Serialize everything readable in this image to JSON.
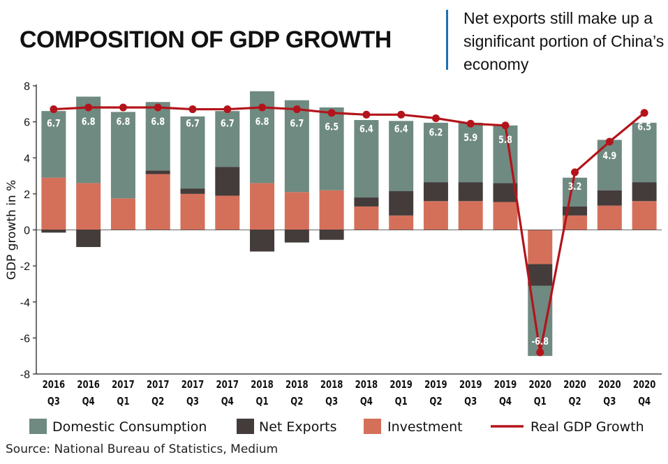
{
  "title": "COMPOSITION OF GDP GROWTH",
  "subtitle": "Net exports still make up a significant portion of China’s economy",
  "source": "Source: National Bureau of Statistics, Medium",
  "colors": {
    "consumption": "#6f8a80",
    "net_exports": "#433c3b",
    "investment": "#d4705a",
    "gdp_line": "#b3141b"
  },
  "chart_data": {
    "type": "bar",
    "subtype": "stacked bar with line overlay",
    "ylabel": "GDP growth in %",
    "ylim": [
      -8,
      8
    ],
    "yticks": [
      8,
      6,
      4,
      2,
      0,
      -2,
      -4,
      -6,
      -8
    ],
    "categories": [
      [
        "2016",
        "Q3"
      ],
      [
        "2016",
        "Q4"
      ],
      [
        "2017",
        "Q1"
      ],
      [
        "2017",
        "Q2"
      ],
      [
        "2017",
        "Q3"
      ],
      [
        "2017",
        "Q4"
      ],
      [
        "2018",
        "Q1"
      ],
      [
        "2018",
        "Q2"
      ],
      [
        "2018",
        "Q3"
      ],
      [
        "2018",
        "Q4"
      ],
      [
        "2019",
        "Q1"
      ],
      [
        "2019",
        "Q2"
      ],
      [
        "2019",
        "Q3"
      ],
      [
        "2019",
        "Q4"
      ],
      [
        "2020",
        "Q1"
      ],
      [
        "2020",
        "Q2"
      ],
      [
        "2020",
        "Q3"
      ],
      [
        "2020",
        "Q4"
      ]
    ],
    "series": [
      {
        "name": "Domestic Consumption",
        "values": [
          3.7,
          4.8,
          4.8,
          3.8,
          4.0,
          3.1,
          5.1,
          5.1,
          4.6,
          4.3,
          3.9,
          3.3,
          3.3,
          3.2,
          -3.9,
          1.6,
          2.8,
          3.3
        ]
      },
      {
        "name": "Net Exports",
        "values": [
          -0.15,
          -0.95,
          0.0,
          0.2,
          0.3,
          1.6,
          -1.2,
          -0.7,
          -0.55,
          0.5,
          1.35,
          1.05,
          1.05,
          1.05,
          -1.2,
          0.5,
          0.85,
          1.05
        ]
      },
      {
        "name": "Investment",
        "values": [
          2.9,
          2.6,
          1.75,
          3.1,
          2.0,
          1.9,
          2.6,
          2.1,
          2.2,
          1.3,
          0.8,
          1.6,
          1.6,
          1.55,
          -1.9,
          0.8,
          1.35,
          1.6
        ]
      }
    ],
    "line": {
      "name": "Real GDP Growth",
      "values": [
        6.7,
        6.8,
        6.8,
        6.8,
        6.7,
        6.7,
        6.8,
        6.7,
        6.5,
        6.4,
        6.4,
        6.2,
        5.9,
        5.8,
        -6.8,
        3.2,
        4.9,
        6.5
      ],
      "labels": [
        "6.7",
        "6.8",
        "6.8",
        "6.8",
        "6.7",
        "6.7",
        "6.8",
        "6.7",
        "6.5",
        "6.4",
        "6.4",
        "6.2",
        "5.9",
        "5.8",
        "-6.8",
        "3.2",
        "4.9",
        "6.5"
      ]
    },
    "legend": [
      "Domestic Consumption",
      "Net Exports",
      "Investment",
      "Real GDP Growth"
    ],
    "legend_position": "bottom"
  }
}
